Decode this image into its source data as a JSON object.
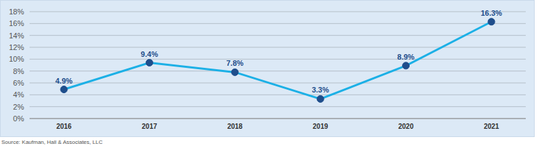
{
  "chart_data": {
    "type": "line",
    "categories": [
      "2016",
      "2017",
      "2018",
      "2019",
      "2020",
      "2021"
    ],
    "values": [
      4.9,
      9.4,
      7.8,
      3.3,
      8.9,
      16.3
    ],
    "value_labels": [
      "4.9%",
      "9.4%",
      "7.8%",
      "3.3%",
      "8.9%",
      "16.3%"
    ],
    "data_labels": true,
    "color": "#1cb0e6",
    "marker": "circle",
    "ylim": [
      0,
      18
    ],
    "yticks": [
      {
        "value": 0,
        "label": "0%"
      },
      {
        "value": 2,
        "label": "2%"
      },
      {
        "value": 4,
        "label": "4%"
      },
      {
        "value": 6,
        "label": "6%"
      },
      {
        "value": 8,
        "label": "8%"
      },
      {
        "value": 10,
        "label": "10%"
      },
      {
        "value": 12,
        "label": "12%"
      },
      {
        "value": 14,
        "label": "14%"
      },
      {
        "value": 16,
        "label": "16%"
      },
      {
        "value": 18,
        "label": "18%"
      }
    ],
    "grid": true,
    "source": "Source: Kaufman, Hall & Associates, LLC"
  }
}
